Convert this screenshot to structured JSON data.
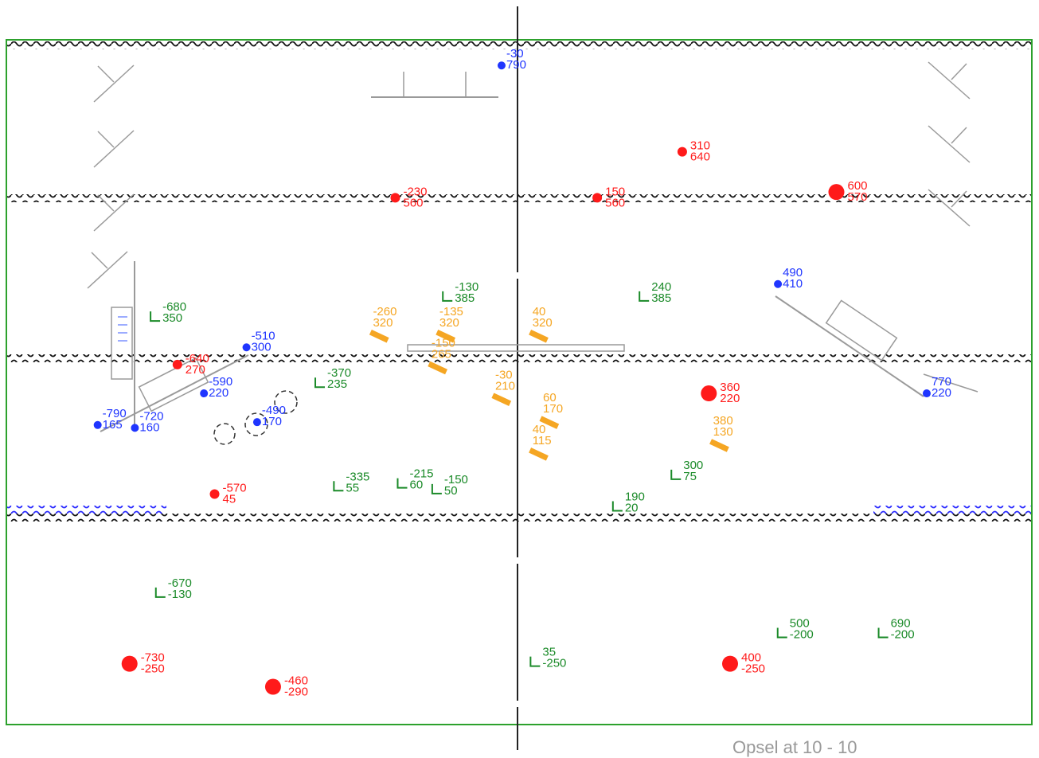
{
  "colors": {
    "frame": "#2da12d",
    "wave_black": "#111111",
    "wave_blue": "#2a2aff",
    "red": "#ff1a1a",
    "blue": "#1f35ff",
    "green": "#1a8a28",
    "orange": "#f5a623",
    "gray": "#9a9a9a"
  },
  "footer_text": "Opsel   at 10 - 10",
  "red_markers": [
    {
      "x": 310,
      "y": 640,
      "size": "small"
    },
    {
      "x": -230,
      "y": 560,
      "size": "small"
    },
    {
      "x": 150,
      "y": 560,
      "size": "small"
    },
    {
      "x": 600,
      "y": 570,
      "size": "large"
    },
    {
      "x": -640,
      "y": 270,
      "size": "small"
    },
    {
      "x": 360,
      "y": 220,
      "size": "large"
    },
    {
      "x": -570,
      "y": 45,
      "size": "small"
    },
    {
      "x": -730,
      "y": -250,
      "size": "large"
    },
    {
      "x": -460,
      "y": -290,
      "size": "large"
    },
    {
      "x": 400,
      "y": -250,
      "size": "large"
    }
  ],
  "blue_markers": [
    {
      "x": -30,
      "y": 790
    },
    {
      "x": 490,
      "y": 410
    },
    {
      "x": -510,
      "y": 300
    },
    {
      "x": 770,
      "y": 220
    },
    {
      "x": -590,
      "y": 220
    },
    {
      "x": -790,
      "y": 165
    },
    {
      "x": -720,
      "y": 160
    },
    {
      "x": -490,
      "y": 170
    }
  ],
  "green_markers": [
    {
      "x": -130,
      "y": 385
    },
    {
      "x": 240,
      "y": 385
    },
    {
      "x": -680,
      "y": 350
    },
    {
      "x": -370,
      "y": 235
    },
    {
      "x": -335,
      "y": 55
    },
    {
      "x": -215,
      "y": 60
    },
    {
      "x": -150,
      "y": 50
    },
    {
      "x": 190,
      "y": 20
    },
    {
      "x": 300,
      "y": 75
    },
    {
      "x": -670,
      "y": -130
    },
    {
      "x": 35,
      "y": -250
    },
    {
      "x": 500,
      "y": -200
    },
    {
      "x": 690,
      "y": -200
    }
  ],
  "orange_markers": [
    {
      "x": -260,
      "y": 320
    },
    {
      "x": -135,
      "y": 320
    },
    {
      "x": 40,
      "y": 320
    },
    {
      "x": -150,
      "y": 265
    },
    {
      "x": -30,
      "y": 210
    },
    {
      "x": 60,
      "y": 170
    },
    {
      "x": 40,
      "y": 115
    },
    {
      "x": 380,
      "y": 130
    }
  ]
}
